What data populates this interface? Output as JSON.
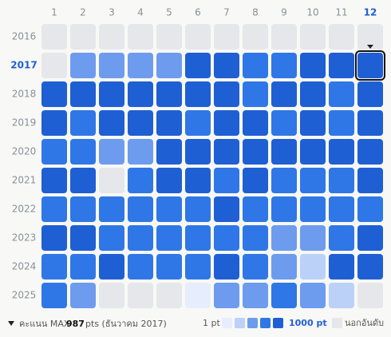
{
  "months": [
    "1",
    "2",
    "3",
    "4",
    "5",
    "6",
    "7",
    "8",
    "9",
    "10",
    "11",
    "12"
  ],
  "years": [
    "2016",
    "2017",
    "2018",
    "2019",
    "2020",
    "2021",
    "2022",
    "2023",
    "2024",
    "2025"
  ],
  "level_colors": [
    "#e6e7eb",
    "#e6eefd",
    "#bcd1f8",
    "#6d9cee",
    "#2f77e6",
    "#1f5fd4"
  ],
  "selected": {
    "year_index": 1,
    "month_index": 11
  },
  "cells": [
    [
      0,
      0,
      0,
      0,
      0,
      0,
      0,
      0,
      0,
      0,
      0,
      0
    ],
    [
      0,
      3,
      3,
      3,
      3,
      5,
      5,
      4,
      4,
      5,
      5,
      5
    ],
    [
      5,
      5,
      5,
      5,
      5,
      5,
      5,
      4,
      5,
      5,
      4,
      5
    ],
    [
      5,
      4,
      5,
      5,
      5,
      4,
      5,
      5,
      4,
      5,
      4,
      5
    ],
    [
      4,
      4,
      3,
      3,
      5,
      5,
      5,
      5,
      5,
      5,
      5,
      5
    ],
    [
      5,
      5,
      0,
      4,
      5,
      5,
      4,
      5,
      4,
      4,
      4,
      5
    ],
    [
      4,
      4,
      4,
      4,
      4,
      4,
      5,
      4,
      4,
      4,
      4,
      4
    ],
    [
      5,
      5,
      4,
      4,
      4,
      4,
      4,
      4,
      3,
      3,
      4,
      5
    ],
    [
      4,
      4,
      5,
      4,
      4,
      4,
      5,
      4,
      3,
      2,
      5,
      5
    ],
    [
      4,
      3,
      0,
      0,
      0,
      1,
      3,
      3,
      4,
      3,
      2,
      0
    ]
  ],
  "footer": {
    "label": "คะแนน MAX",
    "value": "987",
    "suffix": "pts (ธันวาคม 2017)"
  },
  "legend": {
    "min_label": "1 pt",
    "max_label": "1000 pt",
    "out_label": "นอกอันดับ"
  }
}
